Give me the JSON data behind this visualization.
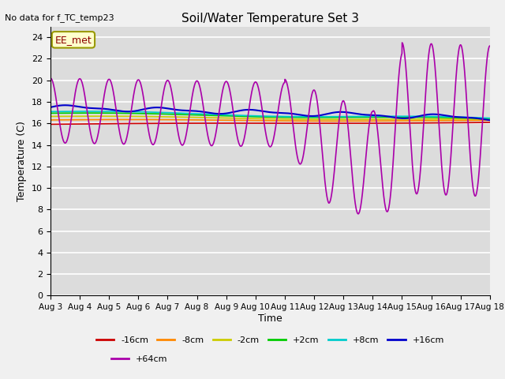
{
  "title": "Soil/Water Temperature Set 3",
  "no_data_text": "No data for f_TC_temp23",
  "xlabel": "Time",
  "ylabel": "Temperature (C)",
  "ylim": [
    0,
    25
  ],
  "yticks": [
    0,
    2,
    4,
    6,
    8,
    10,
    12,
    14,
    16,
    18,
    20,
    22,
    24
  ],
  "xlim": [
    0,
    15
  ],
  "xtick_labels": [
    "Aug 3",
    "Aug 4",
    "Aug 5",
    "Aug 6",
    "Aug 7",
    "Aug 8",
    "Aug 9",
    "Aug 10",
    "Aug 11",
    "Aug 12",
    "Aug 13",
    "Aug 14",
    "Aug 15",
    "Aug 16",
    "Aug 17",
    "Aug 18"
  ],
  "bg_color": "#dcdcdc",
  "fig_color": "#f0f0f0",
  "annotation_box": "EE_met",
  "annotation_box_facecolor": "#ffffcc",
  "annotation_box_edgecolor": "#999900",
  "annotation_text_color": "#8b0000",
  "series_colors": {
    "-16cm": "#cc0000",
    "-8cm": "#ff8800",
    "-2cm": "#cccc00",
    "+2cm": "#00cc00",
    "+8cm": "#00cccc",
    "+16cm": "#0000cc",
    "+64cm": "#aa00aa"
  },
  "legend_labels": [
    "-16cm",
    "-8cm",
    "-2cm",
    "+2cm",
    "+8cm",
    "+16cm",
    "+64cm"
  ],
  "legend_colors": [
    "#cc0000",
    "#ff8800",
    "#cccc00",
    "#00cc00",
    "#00cccc",
    "#0000cc",
    "#aa00aa"
  ]
}
